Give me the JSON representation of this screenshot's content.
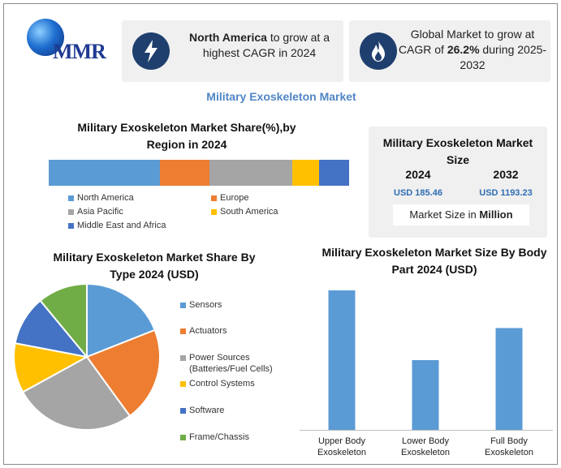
{
  "logo": {
    "text": "MMR"
  },
  "highlights": [
    {
      "icon": "lightning-icon",
      "bold": "North America",
      "rest": " to grow at a highest CAGR in 2024"
    },
    {
      "icon": "flame-icon",
      "pre": "Global Market to grow at CAGR of ",
      "bold": "26.2%",
      "post": " during 2025-2032"
    }
  ],
  "main_title": "Military Exoskeleton Market",
  "market_size": {
    "title": "Military Exoskeleton Market Size",
    "year_a": "2024",
    "year_b": "2032",
    "value_a": "USD 185.46",
    "value_b": "USD 1193.23",
    "note_pre": "Market Size in ",
    "note_bold": "Million"
  },
  "chart_data": [
    {
      "type": "bar",
      "orientation": "horizontal-stacked",
      "title": "Military Exoskeleton Market Share(%),by Region in 2024",
      "categories": [
        "North America",
        "Europe",
        "Asia Pacific",
        "South America",
        "Middle East and Africa"
      ],
      "values": [
        37,
        16.5,
        27.5,
        9,
        10
      ],
      "colors": [
        "#5b9bd5",
        "#ed7d31",
        "#a5a5a5",
        "#ffc000",
        "#4472c4"
      ],
      "legend_position": "bottom"
    },
    {
      "type": "pie",
      "title": "Military Exoskeleton Market Share By Type 2024  (USD)",
      "categories": [
        "Sensors",
        "Actuators",
        "Power Sources (Batteries/Fuel Cells)",
        "Control Systems",
        "Software",
        "Frame/Chassis"
      ],
      "values": [
        19,
        21,
        27,
        11,
        11,
        11
      ],
      "colors": [
        "#5b9bd5",
        "#ed7d31",
        "#a5a5a5",
        "#ffc000",
        "#4472c4",
        "#70ad47"
      ],
      "legend_position": "right"
    },
    {
      "type": "bar",
      "title": "Military Exoskeleton Market Size By Body Part 2024  (USD)",
      "categories": [
        "Upper Body Exoskeleton",
        "Lower Body Exoskeleton",
        "Full Body Exoskeleton"
      ],
      "values": [
        100,
        50,
        73
      ],
      "ylim": [
        0,
        100
      ],
      "color": "#5b9bd5",
      "grid": false
    }
  ],
  "pie_legend_lines": [
    [
      "Sensors"
    ],
    [
      "Actuators"
    ],
    [
      "Power Sources",
      "(Batteries/Fuel Cells)"
    ],
    [
      "Control Systems"
    ],
    [
      "Software"
    ],
    [
      "Frame/Chassis"
    ]
  ],
  "bodypart_label_lines": [
    [
      "Upper Body",
      "Exoskeleton"
    ],
    [
      "Lower Body",
      "Exoskeleton"
    ],
    [
      "Full Body",
      "Exoskeleton"
    ]
  ]
}
